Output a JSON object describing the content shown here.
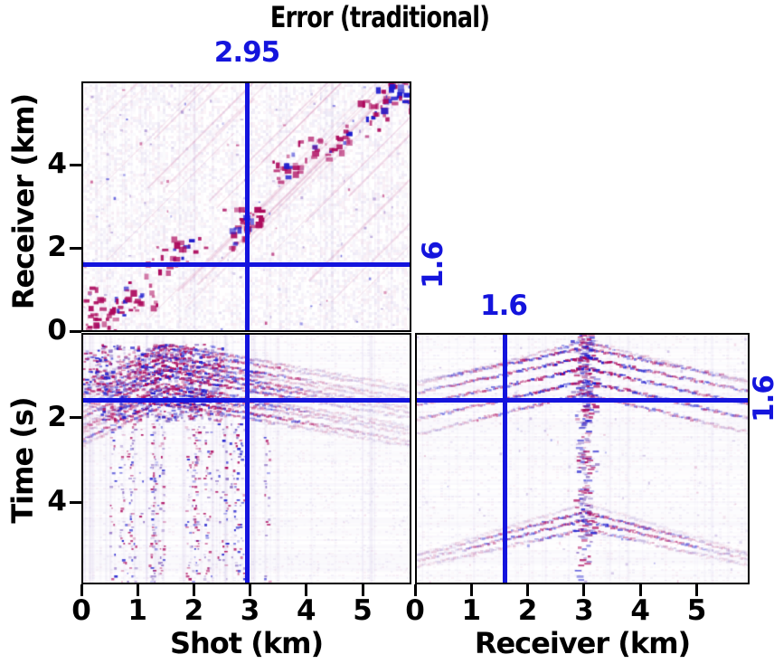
{
  "title": "Error (traditional)",
  "colors": {
    "crosshair": "#1414dd",
    "axis": "#000000",
    "background": "#ffffff",
    "amplitude_positive": "#ac085c",
    "amplitude_negative": "#1e1ccd"
  },
  "chart_data": {
    "type": "heatmap",
    "title": "Error (traditional)",
    "layout": "3-panel seismic data cube: top-left front face (Receiver vs Shot), bottom-left (Time vs Shot), bottom-right side face (Time vs Receiver); shared axes; grid off",
    "colormap": "signed amplitude, white background, crimson positive, blue negative",
    "crosshair": {
      "shot_km": 2.95,
      "receiver_km": 1.6,
      "time_s": 1.6,
      "shot_label": "2.95",
      "receiver_label": "1.6",
      "time_label": "1.6"
    },
    "panels": [
      {
        "id": "shot-receiver",
        "xlabel": "Shot (km)",
        "ylabel": "Receiver (km)",
        "xlim": [
          0,
          5.87
        ],
        "ylim": [
          0,
          6.03
        ],
        "xticks": [
          0,
          1,
          2,
          3,
          4,
          5
        ],
        "yticks": [
          0,
          2,
          4
        ],
        "description": "Scattered error energy concentrated along the shot=receiver diagonal; crimson blobs with blue speckle, faint diagonal streaks; strong blue cluster at top-right corner"
      },
      {
        "id": "shot-time",
        "xlabel": "Shot (km)",
        "ylabel": "Time (s)",
        "xlim": [
          0,
          5.87
        ],
        "ylim": [
          0,
          5.94
        ],
        "y_direction": "down",
        "xticks": [
          0,
          1,
          2,
          3,
          4,
          5
        ],
        "yticks": [
          0,
          2,
          4
        ],
        "description": "Dense banded arrivals between 0.2-1.9 s with apex near shot 1.45 km, decaying tail to the right; vertical noise streaks below 2 s concentrated at shot 0.5-3 km"
      },
      {
        "id": "receiver-time",
        "xlabel": "Receiver (km)",
        "ylabel": "Time (s)",
        "xlim": [
          0,
          5.94
        ],
        "ylim": [
          0,
          5.94
        ],
        "y_direction": "down",
        "xticks": [
          0,
          1,
          2,
          3,
          4,
          5
        ],
        "yticks": [
          0,
          2,
          4
        ],
        "description": "Symmetric hyperbolic/chevron arrivals with apex at receiver 3 km near 0.3-1.3 s and again near 3.6-4.2 s; dense vertical column of blue/crimson energy at receiver 3 km"
      }
    ]
  },
  "axes": {
    "shot": {
      "title": "Shot (km)",
      "ticks": [
        0,
        1,
        2,
        3,
        4,
        5
      ]
    },
    "receiver_bottom": {
      "title": "Receiver (km)",
      "ticks": [
        0,
        1,
        2,
        3,
        4,
        5
      ]
    },
    "receiver_left": {
      "title": "Receiver (km)",
      "ticks": [
        0,
        2,
        4
      ]
    },
    "time_left": {
      "title": "Time (s)",
      "ticks": [
        2,
        4
      ]
    }
  }
}
